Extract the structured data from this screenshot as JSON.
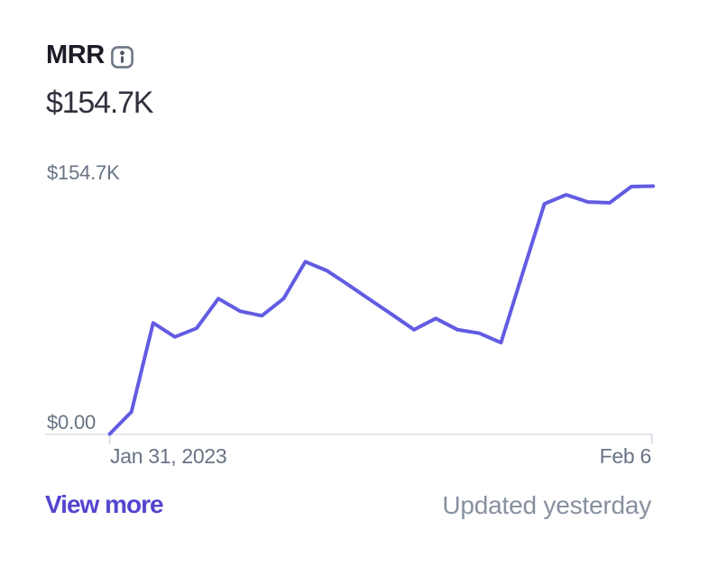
{
  "widget": {
    "title": "MRR",
    "value": "$154.7K",
    "footer": {
      "view_more_label": "View more",
      "updated_label": "Updated yesterday"
    }
  },
  "axis": {
    "y_max_label": "$154.7K",
    "y_min_label": "$0.00",
    "x_start_label": "Jan 31, 2023",
    "x_end_label": "Feb 6"
  },
  "colors": {
    "line": "#625be2",
    "link": "#5345cf",
    "title_text": "#1a1b25",
    "value_text": "#30313d",
    "axis_label_text": "#687385",
    "updated_text": "#87909f",
    "axis_line": "#e3e8ee",
    "tick": "#d9dfe6",
    "background": "#ffffff",
    "info_icon": "#6f7787"
  },
  "chart_data": {
    "type": "line",
    "title": "MRR",
    "series_name": "MRR",
    "unit": "USD",
    "x_axis": {
      "start": "Jan 31, 2023",
      "end": "Feb 6",
      "tick_labels": [
        "Jan 31, 2023",
        "Feb 6"
      ]
    },
    "y_axis": {
      "min_label": "$0.00",
      "max_label": "$154.7K",
      "ylim": [
        0,
        154700
      ]
    },
    "grid": false,
    "legend": false,
    "values": [
      0,
      13800,
      69300,
      60600,
      66000,
      84500,
      76600,
      73800,
      84500,
      107500,
      101900,
      92900,
      83600,
      74400,
      65100,
      72100,
      65100,
      62900,
      57000,
      100500,
      143700,
      149300,
      144800,
      144300,
      154400,
      154700
    ]
  }
}
